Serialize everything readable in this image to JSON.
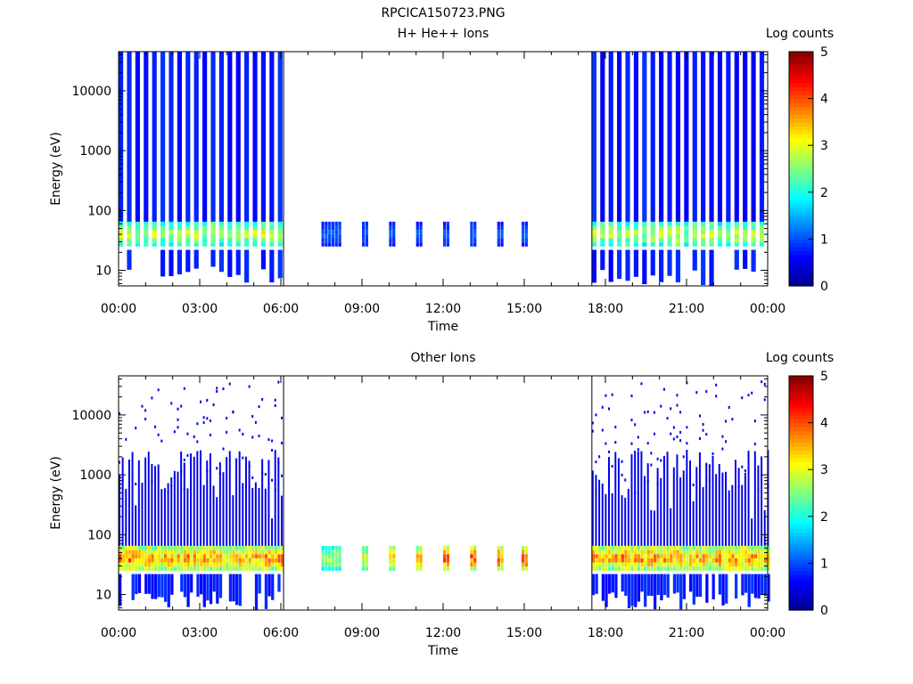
{
  "figure_title": "RPCICA150723.PNG",
  "colorscale": {
    "stops": [
      "#00008f",
      "#0000ff",
      "#007fff",
      "#00ffff",
      "#7fff7f",
      "#ffff00",
      "#ff7f00",
      "#ff0000",
      "#7f0000"
    ]
  },
  "chart_data": [
    {
      "type": "heatmap",
      "title": "H+ He++ Ions",
      "xlabel": "Time",
      "ylabel": "Energy (eV)",
      "x_ticks": [
        "00:00",
        "03:00",
        "06:00",
        "09:00",
        "12:00",
        "15:00",
        "18:00",
        "21:00",
        "00:00"
      ],
      "x_range_hours": [
        0,
        24
      ],
      "y_scale": "log",
      "y_range": [
        5.5,
        45000
      ],
      "y_ticks": [
        "10",
        "100",
        "1000",
        "10000"
      ],
      "colorbar": {
        "label": "Log counts",
        "range": [
          0,
          5
        ],
        "ticks": [
          "0",
          "1",
          "2",
          "3",
          "4",
          "5"
        ]
      },
      "data_gaps_hours": [
        [
          6.1,
          7.5
        ],
        [
          15.1,
          17.5
        ]
      ],
      "segments": [
        {
          "name": "survey",
          "start_hour": 0.0,
          "end_hour": 6.1
        },
        {
          "name": "bursts",
          "start_hours": [
            7.5,
            9.0,
            10.0,
            11.0,
            12.0,
            13.0,
            14.0,
            14.9
          ]
        },
        {
          "name": "survey",
          "start_hour": 17.5,
          "end_hour": 24.0
        }
      ],
      "band_energy_eV": [
        25,
        65
      ],
      "band_peak_log_counts": 3.5
    },
    {
      "type": "heatmap",
      "title": "Other Ions",
      "xlabel": "Time",
      "ylabel": "Energy (eV)",
      "x_ticks": [
        "00:00",
        "03:00",
        "06:00",
        "09:00",
        "12:00",
        "15:00",
        "18:00",
        "21:00",
        "00:00"
      ],
      "x_range_hours": [
        0,
        24
      ],
      "y_scale": "log",
      "y_range": [
        5.5,
        45000
      ],
      "y_ticks": [
        "10",
        "100",
        "1000",
        "10000"
      ],
      "colorbar": {
        "label": "Log counts",
        "range": [
          0,
          5
        ],
        "ticks": [
          "0",
          "1",
          "2",
          "3",
          "4",
          "5"
        ]
      },
      "data_gaps_hours": [
        [
          6.1,
          7.5
        ],
        [
          15.1,
          17.5
        ]
      ],
      "segments": [
        {
          "name": "survey",
          "start_hour": 0.0,
          "end_hour": 6.1
        },
        {
          "name": "bursts",
          "start_hours": [
            7.5,
            9.0,
            10.0,
            11.0,
            12.0,
            13.0,
            14.0,
            14.9
          ]
        },
        {
          "name": "survey",
          "start_hour": 17.5,
          "end_hour": 24.0
        }
      ],
      "band_energy_eV": [
        25,
        65
      ],
      "band_peak_log_counts": 4.5
    }
  ]
}
